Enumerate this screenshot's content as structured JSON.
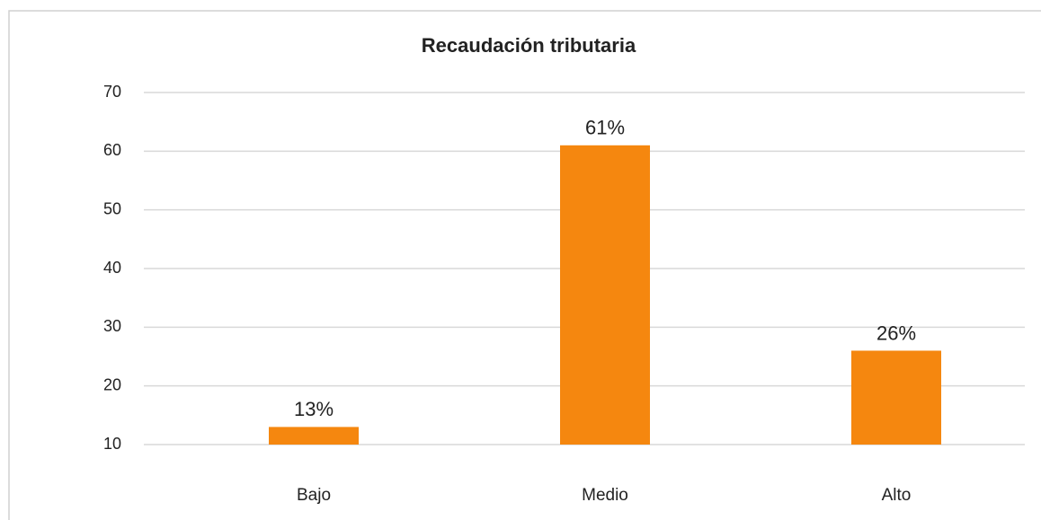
{
  "chart_data": {
    "type": "bar",
    "title": "Recaudación tributaria",
    "categories": [
      "Bajo",
      "Medio",
      "Alto"
    ],
    "values": [
      13,
      61,
      26
    ],
    "value_labels": [
      "13%",
      "61%",
      "26%"
    ],
    "color": "#f5870f",
    "ylim": [
      10,
      70
    ],
    "yticks": [
      10,
      20,
      30,
      40,
      50,
      60,
      70
    ],
    "grid": true
  }
}
